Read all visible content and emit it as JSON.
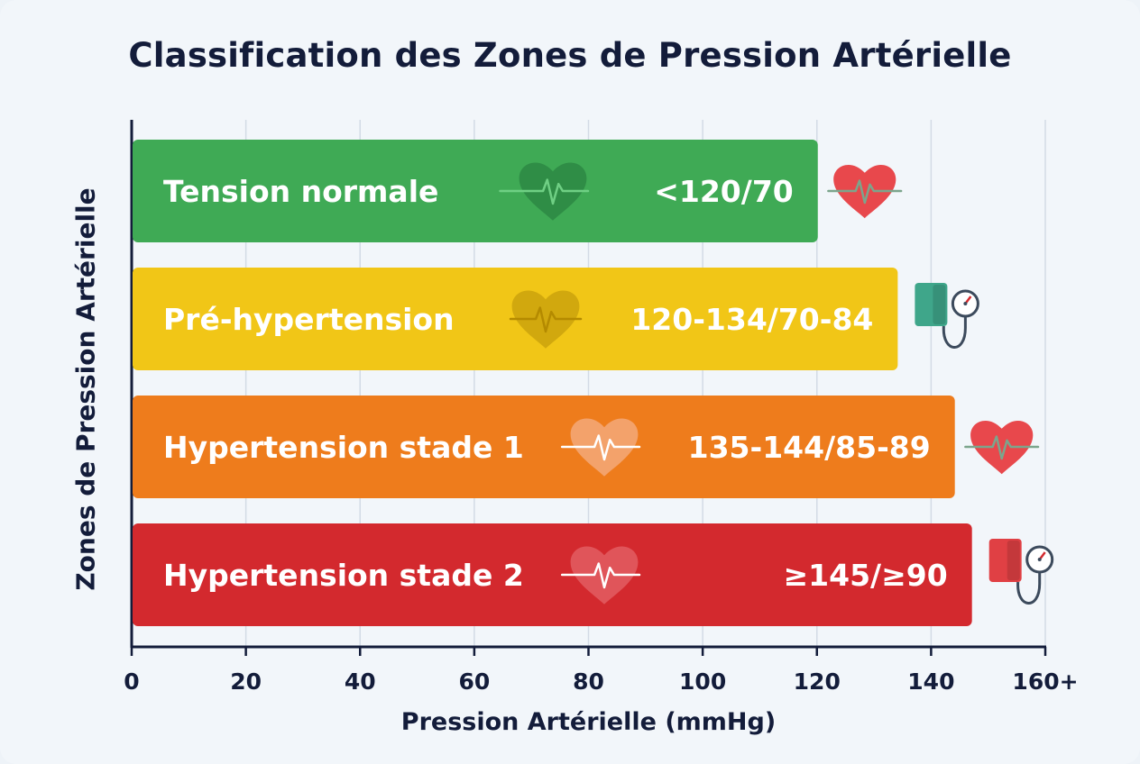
{
  "chart_data": {
    "type": "bar",
    "orientation": "horizontal",
    "title": "Classification des Zones de Pression Artérielle",
    "xlabel": "Pression Artérielle (mmHg)",
    "ylabel": "Zones de Pression Artérielle",
    "xlim": [
      0,
      160
    ],
    "x_ticks": [
      "0",
      "20",
      "40",
      "60",
      "80",
      "100",
      "120",
      "140",
      "160+"
    ],
    "grid": true,
    "categories": [
      "Tension normale",
      "Pré-hypertension",
      "Hypertension stade 1",
      "Hypertension stade 2"
    ],
    "values": [
      120,
      134,
      144,
      147
    ],
    "value_labels": [
      "<120/70",
      "120-134/70-84",
      "135-144/85-89",
      "≥145/≥90"
    ],
    "colors": [
      "#3faa55",
      "#f1c617",
      "#ee7c1c",
      "#d3292e"
    ],
    "end_icons": [
      "heart-icon",
      "blood-pressure-monitor-icon",
      "heart-icon",
      "blood-pressure-monitor-icon"
    ]
  }
}
